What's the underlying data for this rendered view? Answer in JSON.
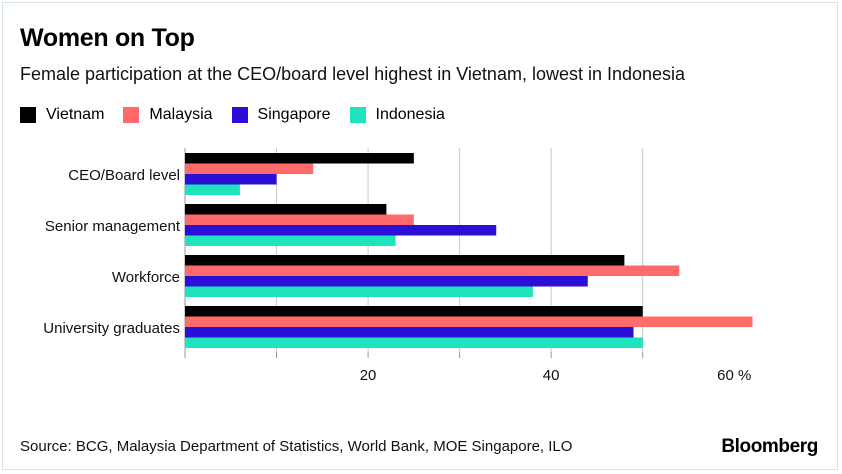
{
  "chart_data": {
    "type": "bar",
    "orientation": "horizontal",
    "title": "Women on Top",
    "subtitle": "Female participation at the CEO/board level highest in Vietnam, lowest in Indonesia",
    "categories": [
      "CEO/Board level",
      "Senior management",
      "Workforce",
      "University graduates"
    ],
    "series": [
      {
        "name": "Vietnam",
        "color": "#000000",
        "values": [
          25,
          22,
          48,
          50
        ]
      },
      {
        "name": "Malaysia",
        "color": "#ff6b6b",
        "values": [
          14,
          25,
          54,
          62
        ]
      },
      {
        "name": "Singapore",
        "color": "#2b0fd6",
        "values": [
          10,
          34,
          44,
          49
        ]
      },
      {
        "name": "Indonesia",
        "color": "#1ee3bc",
        "values": [
          6,
          23,
          38,
          50
        ]
      }
    ],
    "xlim": [
      0,
      65
    ],
    "xticks": [
      {
        "value": 20,
        "label": "20"
      },
      {
        "value": 40,
        "label": "40"
      },
      {
        "value": 60,
        "label": "60 %"
      }
    ],
    "gridlines": [
      10,
      20,
      30,
      40,
      50
    ],
    "legend_position": "top-left",
    "grid": true
  },
  "footer": {
    "source": "Source: BCG, Malaysia Department of Statistics, World Bank, MOE Singapore, ILO",
    "brand": "Bloomberg"
  }
}
